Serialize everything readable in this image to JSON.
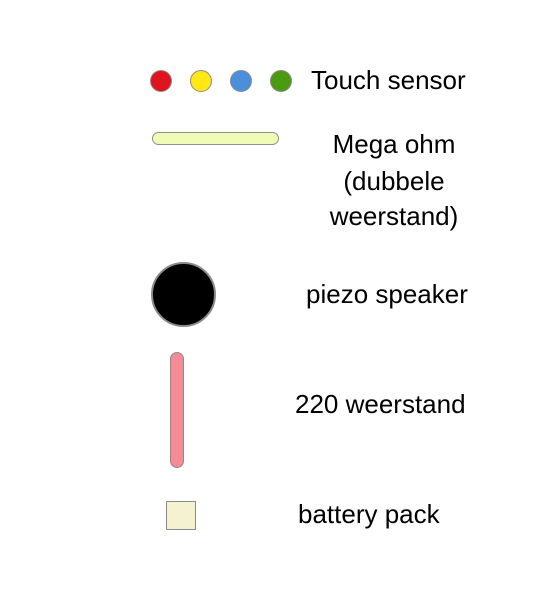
{
  "legend": {
    "touch_sensor": {
      "label": "Touch sensor",
      "dot_colors": [
        "#e0141e",
        "#ffe814",
        "#4a8fdc",
        "#4a9a12"
      ]
    },
    "mega_ohm": {
      "label_lines": [
        "Mega ohm",
        "(dubbele",
        "weerstand)"
      ],
      "color": "#eefcb6"
    },
    "piezo_speaker": {
      "label": "piezo speaker",
      "color": "#000000"
    },
    "resistor_220": {
      "label": "220 weerstand",
      "color": "#f78b95"
    },
    "battery_pack": {
      "label": "battery pack",
      "color": "#f5f2d2"
    }
  }
}
